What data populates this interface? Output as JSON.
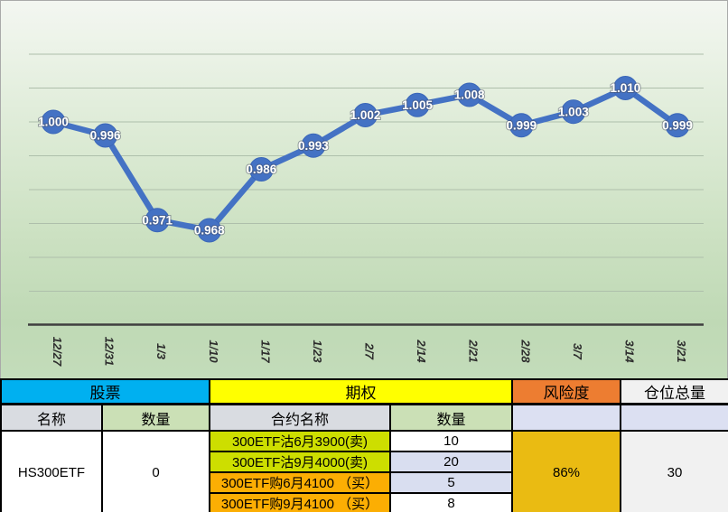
{
  "chart_data": {
    "type": "line",
    "title": "",
    "xlabel": "",
    "ylabel": "",
    "categories": [
      "12/27",
      "12/31",
      "1/3",
      "1/10",
      "1/17",
      "1/23",
      "2/7",
      "2/14",
      "2/21",
      "2/28",
      "3/7",
      "3/14",
      "3/21"
    ],
    "values": [
      1.0,
      0.996,
      0.971,
      0.968,
      0.986,
      0.993,
      1.002,
      1.005,
      1.008,
      0.999,
      1.003,
      1.01,
      0.999
    ],
    "point_labels": [
      "1.000",
      "0.996",
      "0.971",
      "0.968",
      "0.986",
      "0.993",
      "1.002",
      "1.005",
      "1.008",
      "0.999",
      "1.003",
      "1.010",
      "0.999"
    ],
    "ylim": [
      0.94,
      1.02
    ],
    "grid_step": 0.01,
    "grid_on": true,
    "legend": "none",
    "line_color": "#4472c4",
    "marker_color": "#4472c4",
    "marker_edge_color": "#3a66b8",
    "point_label_color": "#ffffff",
    "axis_color": "#3f3f3f",
    "grid_color": "#aebfab"
  },
  "table": {
    "groups": [
      {
        "label": "股票",
        "bg": "#00b0f0"
      },
      {
        "label": "期权",
        "bg": "#ffff00"
      },
      {
        "label": "风险度",
        "bg": "#ed7d31"
      },
      {
        "label": "仓位总量",
        "bg": "#f1f1f1"
      }
    ],
    "subheaders": [
      {
        "label": "名称",
        "bg": "#d9dce1"
      },
      {
        "label": "数量",
        "bg": "#cbe0b6"
      },
      {
        "label": "合约名称",
        "bg": "#d9dce1"
      },
      {
        "label": "数量",
        "bg": "#cbe0b6"
      },
      {
        "label": "",
        "bg": "#dce0f2"
      },
      {
        "label": "",
        "bg": "#dce0f2"
      }
    ],
    "stock": {
      "name": "HS300ETF",
      "name_bg": "#ffffff",
      "quantity": "0",
      "quantity_bg": "#ffffff"
    },
    "options": [
      {
        "contract": "300ETF沽6月3900(卖)",
        "qty": "10",
        "contract_bg": "#cdde00",
        "qty_bg": "#ffffff"
      },
      {
        "contract": "300ETF沽9月4000(卖)",
        "qty": "20",
        "contract_bg": "#cdde00",
        "qty_bg": "#d9def0"
      },
      {
        "contract": "300ETF购6月4100 （买）",
        "qty": "5",
        "contract_bg": "#fcae03",
        "qty_bg": "#d9def0"
      },
      {
        "contract": "300ETF购9月4100 （买）",
        "qty": "8",
        "contract_bg": "#fcae03",
        "qty_bg": "#ffffff"
      }
    ],
    "risk_value": {
      "text": "86%",
      "bg": "#eabb12"
    },
    "position_total": {
      "text": "30",
      "bg": "#f1f1f1"
    }
  }
}
